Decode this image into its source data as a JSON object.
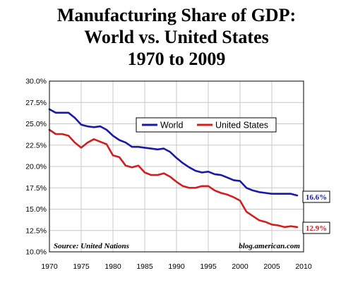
{
  "title_lines": [
    "Manufacturing Share of GDP:",
    "World vs. United States",
    "1970 to 2009"
  ],
  "chart_data": {
    "type": "line",
    "title": "Manufacturing Share of GDP: World vs. United States 1970 to 2009",
    "xlabel": "",
    "ylabel": "",
    "xlim": [
      1970,
      2010
    ],
    "ylim": [
      10.0,
      30.0
    ],
    "x_ticks": [
      "1970",
      "1975",
      "1980",
      "1985",
      "1990",
      "1995",
      "2000",
      "2005",
      "2010"
    ],
    "y_ticks": [
      "10.0%",
      "12.5%",
      "15.0%",
      "17.5%",
      "20.0%",
      "22.5%",
      "25.0%",
      "27.5%",
      "30.0%"
    ],
    "grid": true,
    "legend_position": "upper-center",
    "x": [
      1970,
      1971,
      1972,
      1973,
      1974,
      1975,
      1976,
      1977,
      1978,
      1979,
      1980,
      1981,
      1982,
      1983,
      1984,
      1985,
      1986,
      1987,
      1988,
      1989,
      1990,
      1991,
      1992,
      1993,
      1994,
      1995,
      1996,
      1997,
      1998,
      1999,
      2000,
      2001,
      2002,
      2003,
      2004,
      2005,
      2006,
      2007,
      2008,
      2009
    ],
    "series": [
      {
        "name": "World",
        "color": "#1a1aa6",
        "values": [
          26.7,
          26.3,
          26.3,
          26.3,
          25.7,
          24.9,
          24.7,
          24.6,
          24.7,
          24.3,
          23.6,
          23.1,
          22.8,
          22.3,
          22.3,
          22.2,
          22.1,
          22.0,
          22.1,
          21.7,
          21.0,
          20.4,
          19.9,
          19.5,
          19.3,
          19.4,
          19.1,
          19.0,
          18.7,
          18.4,
          18.3,
          17.5,
          17.2,
          17.0,
          16.9,
          16.8,
          16.8,
          16.8,
          16.8,
          16.6
        ]
      },
      {
        "name": "United States",
        "color": "#d11f1f",
        "values": [
          24.3,
          23.8,
          23.8,
          23.6,
          22.8,
          22.2,
          22.8,
          23.2,
          22.9,
          22.6,
          21.3,
          21.1,
          20.1,
          19.9,
          20.1,
          19.3,
          19.0,
          19.0,
          19.2,
          18.8,
          18.2,
          17.7,
          17.5,
          17.5,
          17.7,
          17.7,
          17.2,
          16.9,
          16.7,
          16.4,
          16.0,
          14.7,
          14.2,
          13.7,
          13.5,
          13.2,
          13.1,
          12.9,
          13.0,
          12.9
        ]
      }
    ],
    "end_labels": [
      "16.6%",
      "12.9%"
    ],
    "annotations": {
      "source": "Source: United Nations",
      "credit": "blog.american.com"
    }
  }
}
